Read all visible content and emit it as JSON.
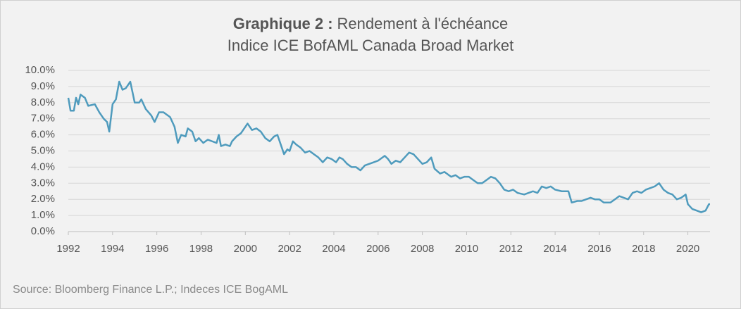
{
  "chart_data": {
    "type": "line",
    "title_bold": "Graphique 2 :",
    "title": "Rendement à l'échéance",
    "subtitle": "Indice ICE BofAML Canada Broad Market",
    "source": "Source: Bloomberg Finance L.P.; Indeces ICE BogAML",
    "color": "#4f9bbd",
    "grid": true,
    "xlim": [
      1992,
      2021
    ],
    "xticks": [
      1992,
      1994,
      1996,
      1998,
      2000,
      2002,
      2004,
      2006,
      2008,
      2010,
      2012,
      2014,
      2016,
      2018,
      2020
    ],
    "ylim": [
      0,
      10
    ],
    "yticks": [
      {
        "value": 0,
        "label": "0.0%"
      },
      {
        "value": 1,
        "label": "1.0%"
      },
      {
        "value": 2,
        "label": "2.0%"
      },
      {
        "value": 3,
        "label": "3.0%"
      },
      {
        "value": 4,
        "label": "4.0%"
      },
      {
        "value": 5,
        "label": "5.0%"
      },
      {
        "value": 6,
        "label": "6.0%"
      },
      {
        "value": 7,
        "label": "7.0%"
      },
      {
        "value": 8,
        "label": "8.0%"
      },
      {
        "value": 9,
        "label": "9.0%"
      },
      {
        "value": 10,
        "label": "10.0%"
      }
    ],
    "x": [
      1992.0,
      1992.1,
      1992.25,
      1992.35,
      1992.45,
      1992.55,
      1992.75,
      1992.9,
      1993.2,
      1993.4,
      1993.6,
      1993.75,
      1993.85,
      1994.0,
      1994.15,
      1994.3,
      1994.45,
      1994.6,
      1994.8,
      1995.0,
      1995.2,
      1995.3,
      1995.5,
      1995.75,
      1995.9,
      1996.1,
      1996.3,
      1996.6,
      1996.8,
      1996.95,
      1997.1,
      1997.3,
      1997.4,
      1997.6,
      1997.75,
      1997.9,
      1998.1,
      1998.3,
      1998.5,
      1998.7,
      1998.8,
      1998.9,
      1999.1,
      1999.3,
      1999.4,
      1999.6,
      1999.8,
      2000.0,
      2000.1,
      2000.3,
      2000.5,
      2000.7,
      2000.9,
      2001.1,
      2001.3,
      2001.45,
      2001.6,
      2001.75,
      2001.9,
      2002.0,
      2002.15,
      2002.3,
      2002.5,
      2002.7,
      2002.9,
      2003.1,
      2003.3,
      2003.5,
      2003.7,
      2003.9,
      2004.1,
      2004.25,
      2004.4,
      2004.6,
      2004.8,
      2005.0,
      2005.2,
      2005.4,
      2005.6,
      2005.8,
      2006.0,
      2006.3,
      2006.45,
      2006.6,
      2006.8,
      2007.0,
      2007.2,
      2007.4,
      2007.6,
      2007.8,
      2008.0,
      2008.2,
      2008.4,
      2008.55,
      2008.8,
      2009.0,
      2009.3,
      2009.5,
      2009.7,
      2009.9,
      2010.1,
      2010.3,
      2010.5,
      2010.7,
      2010.9,
      2011.1,
      2011.3,
      2011.5,
      2011.7,
      2011.9,
      2012.1,
      2012.3,
      2012.6,
      2012.8,
      2013.0,
      2013.2,
      2013.4,
      2013.6,
      2013.8,
      2014.0,
      2014.3,
      2014.6,
      2014.75,
      2015.0,
      2015.2,
      2015.4,
      2015.6,
      2015.8,
      2016.0,
      2016.2,
      2016.5,
      2016.7,
      2016.9,
      2017.1,
      2017.3,
      2017.5,
      2017.7,
      2017.9,
      2018.1,
      2018.3,
      2018.5,
      2018.7,
      2018.9,
      2019.1,
      2019.3,
      2019.5,
      2019.7,
      2019.9,
      2020.0,
      2020.2,
      2020.4,
      2020.6,
      2020.8,
      2020.95,
      2021.0
    ],
    "values": [
      8.3,
      7.5,
      7.5,
      8.3,
      7.9,
      8.5,
      8.3,
      7.8,
      7.9,
      7.4,
      7.0,
      6.8,
      6.2,
      7.9,
      8.2,
      9.3,
      8.8,
      8.9,
      9.3,
      8.0,
      8.0,
      8.2,
      7.6,
      7.2,
      6.8,
      7.4,
      7.4,
      7.1,
      6.5,
      5.5,
      6.0,
      5.9,
      6.4,
      6.2,
      5.6,
      5.8,
      5.5,
      5.7,
      5.6,
      5.5,
      6.0,
      5.3,
      5.4,
      5.3,
      5.6,
      5.9,
      6.1,
      6.5,
      6.7,
      6.3,
      6.4,
      6.2,
      5.8,
      5.6,
      5.9,
      6.0,
      5.4,
      4.8,
      5.1,
      5.0,
      5.6,
      5.4,
      5.2,
      4.9,
      5.0,
      4.8,
      4.6,
      4.3,
      4.6,
      4.5,
      4.3,
      4.6,
      4.5,
      4.2,
      4.0,
      4.0,
      3.8,
      4.1,
      4.2,
      4.3,
      4.4,
      4.7,
      4.5,
      4.2,
      4.4,
      4.3,
      4.6,
      4.9,
      4.8,
      4.5,
      4.2,
      4.3,
      4.6,
      3.9,
      3.6,
      3.7,
      3.4,
      3.5,
      3.3,
      3.4,
      3.4,
      3.2,
      3.0,
      3.0,
      3.2,
      3.4,
      3.3,
      3.0,
      2.6,
      2.5,
      2.6,
      2.4,
      2.3,
      2.4,
      2.5,
      2.4,
      2.8,
      2.7,
      2.8,
      2.6,
      2.5,
      2.5,
      1.8,
      1.9,
      1.9,
      2.0,
      2.1,
      2.0,
      2.0,
      1.8,
      1.8,
      2.0,
      2.2,
      2.1,
      2.0,
      2.4,
      2.5,
      2.4,
      2.6,
      2.7,
      2.8,
      3.0,
      2.6,
      2.4,
      2.3,
      2.0,
      2.1,
      2.3,
      1.7,
      1.4,
      1.3,
      1.2,
      1.3,
      1.7,
      1.7
    ]
  }
}
